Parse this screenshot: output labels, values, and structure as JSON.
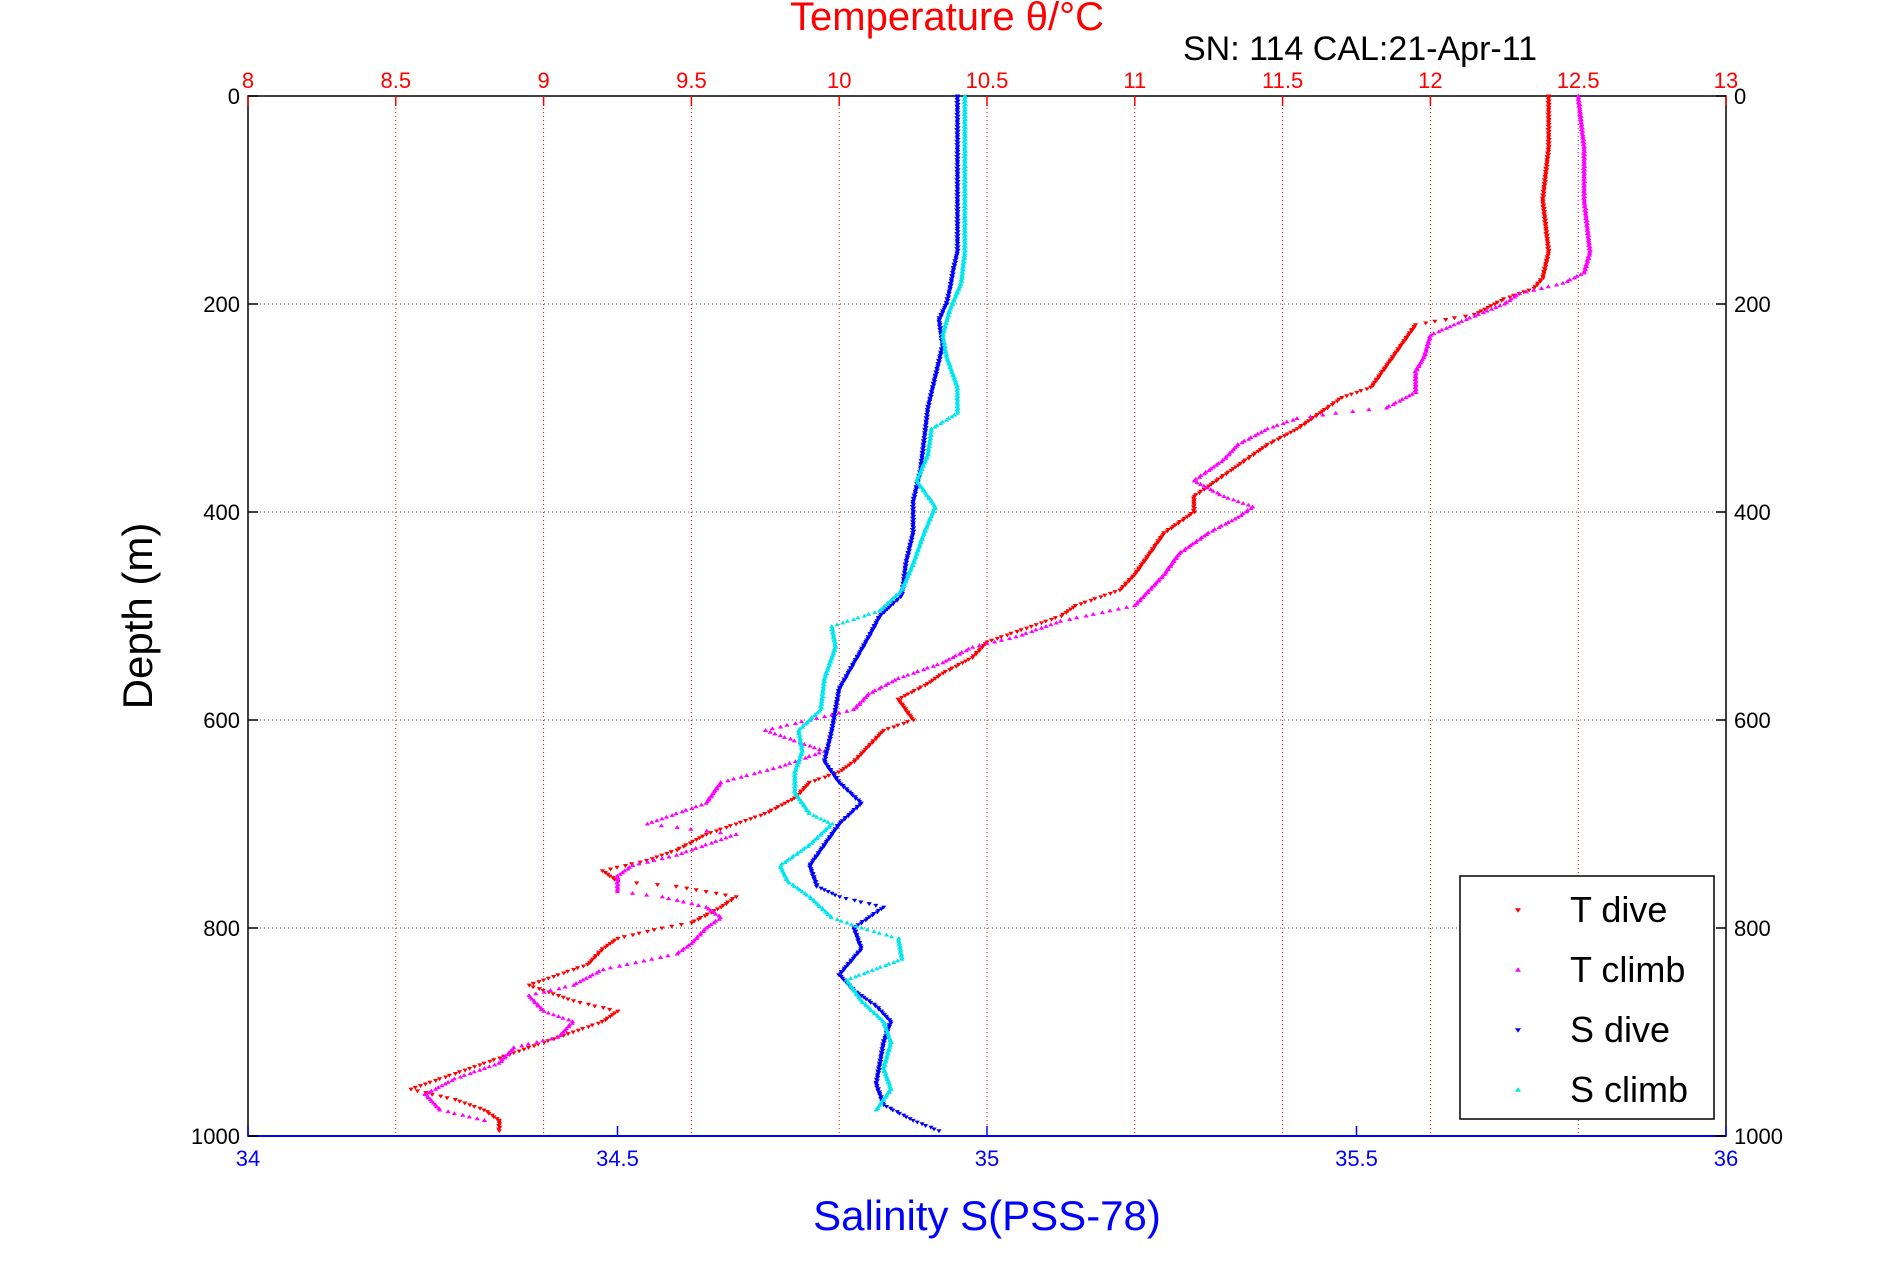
{
  "chart_data": {
    "type": "scatter",
    "title": "Temperature θ/°C",
    "subtitle": "SN: 114  CAL:21-Apr-11",
    "xlabel": "Salinity S(PSS-78)",
    "ylabel": "Depth (m)",
    "x_top": {
      "range": [
        8,
        13
      ],
      "ticks": [
        "8",
        "8.5",
        "9",
        "9.5",
        "10",
        "10.5",
        "11",
        "11.5",
        "12",
        "12.5",
        "13"
      ],
      "color": "#ff0000"
    },
    "x_bottom": {
      "range": [
        34,
        36
      ],
      "ticks": [
        "34",
        "34.5",
        "35",
        "35.5",
        "36"
      ],
      "color": "#0000ff"
    },
    "y": {
      "range": [
        0,
        1000
      ],
      "reversed": true,
      "ticks": [
        "0",
        "200",
        "400",
        "600",
        "800",
        "1000"
      ]
    },
    "grid": true,
    "legend_position": "bottom-right",
    "series": [
      {
        "name": "T dive",
        "axis": "top",
        "color": "#ff0000",
        "marker": "▾",
        "points": [
          [
            12.4,
            0
          ],
          [
            12.4,
            50
          ],
          [
            12.38,
            100
          ],
          [
            12.4,
            150
          ],
          [
            12.38,
            175
          ],
          [
            12.35,
            185
          ],
          [
            12.25,
            195
          ],
          [
            12.15,
            210
          ],
          [
            11.95,
            220
          ],
          [
            11.9,
            240
          ],
          [
            11.85,
            260
          ],
          [
            11.8,
            280
          ],
          [
            11.7,
            290
          ],
          [
            11.65,
            300
          ],
          [
            11.55,
            320
          ],
          [
            11.45,
            335
          ],
          [
            11.4,
            345
          ],
          [
            11.35,
            355
          ],
          [
            11.3,
            365
          ],
          [
            11.25,
            375
          ],
          [
            11.2,
            385
          ],
          [
            11.2,
            400
          ],
          [
            11.1,
            420
          ],
          [
            11.05,
            440
          ],
          [
            11.0,
            460
          ],
          [
            10.95,
            475
          ],
          [
            10.8,
            490
          ],
          [
            10.75,
            500
          ],
          [
            10.65,
            510
          ],
          [
            10.5,
            525
          ],
          [
            10.45,
            540
          ],
          [
            10.35,
            555
          ],
          [
            10.3,
            565
          ],
          [
            10.2,
            580
          ],
          [
            10.25,
            600
          ],
          [
            10.15,
            610
          ],
          [
            10.1,
            625
          ],
          [
            10.05,
            640
          ],
          [
            10.0,
            650
          ],
          [
            9.9,
            660
          ],
          [
            9.85,
            675
          ],
          [
            9.75,
            690
          ],
          [
            9.65,
            700
          ],
          [
            9.55,
            710
          ],
          [
            9.45,
            725
          ],
          [
            9.35,
            735
          ],
          [
            9.2,
            745
          ],
          [
            9.25,
            755
          ],
          [
            9.45,
            760
          ],
          [
            9.65,
            770
          ],
          [
            9.6,
            780
          ],
          [
            9.5,
            795
          ],
          [
            9.4,
            800
          ],
          [
            9.25,
            810
          ],
          [
            9.2,
            820
          ],
          [
            9.15,
            835
          ],
          [
            9.05,
            845
          ],
          [
            8.95,
            855
          ],
          [
            9.1,
            870
          ],
          [
            9.25,
            880
          ],
          [
            9.2,
            890
          ],
          [
            9.1,
            900
          ],
          [
            8.95,
            915
          ],
          [
            8.85,
            925
          ],
          [
            8.75,
            935
          ],
          [
            8.65,
            945
          ],
          [
            8.55,
            955
          ],
          [
            8.7,
            965
          ],
          [
            8.8,
            975
          ],
          [
            8.85,
            985
          ],
          [
            8.85,
            995
          ]
        ]
      },
      {
        "name": "T climb",
        "axis": "top",
        "color": "#ff00ff",
        "marker": "▴",
        "points": [
          [
            12.5,
            0
          ],
          [
            12.52,
            50
          ],
          [
            12.52,
            100
          ],
          [
            12.54,
            150
          ],
          [
            12.52,
            170
          ],
          [
            12.45,
            180
          ],
          [
            12.3,
            190
          ],
          [
            12.25,
            200
          ],
          [
            12.12,
            215
          ],
          [
            12.0,
            230
          ],
          [
            11.98,
            250
          ],
          [
            11.95,
            265
          ],
          [
            11.95,
            285
          ],
          [
            11.85,
            300
          ],
          [
            11.68,
            305
          ],
          [
            11.55,
            310
          ],
          [
            11.45,
            320
          ],
          [
            11.35,
            335
          ],
          [
            11.3,
            350
          ],
          [
            11.25,
            360
          ],
          [
            11.2,
            370
          ],
          [
            11.3,
            385
          ],
          [
            11.4,
            395
          ],
          [
            11.35,
            405
          ],
          [
            11.25,
            420
          ],
          [
            11.15,
            440
          ],
          [
            11.1,
            460
          ],
          [
            11.0,
            490
          ],
          [
            10.75,
            505
          ],
          [
            10.6,
            520
          ],
          [
            10.45,
            530
          ],
          [
            10.35,
            545
          ],
          [
            10.2,
            560
          ],
          [
            10.1,
            575
          ],
          [
            10.05,
            590
          ],
          [
            9.9,
            600
          ],
          [
            9.75,
            610
          ],
          [
            9.85,
            620
          ],
          [
            9.95,
            630
          ],
          [
            9.8,
            645
          ],
          [
            9.6,
            660
          ],
          [
            9.55,
            680
          ],
          [
            9.45,
            690
          ],
          [
            9.35,
            700
          ],
          [
            9.65,
            710
          ],
          [
            9.55,
            720
          ],
          [
            9.45,
            730
          ],
          [
            9.3,
            740
          ],
          [
            9.25,
            750
          ],
          [
            9.25,
            765
          ],
          [
            9.4,
            770
          ],
          [
            9.55,
            780
          ],
          [
            9.6,
            790
          ],
          [
            9.55,
            800
          ],
          [
            9.5,
            815
          ],
          [
            9.45,
            825
          ],
          [
            9.2,
            840
          ],
          [
            9.1,
            855
          ],
          [
            8.95,
            865
          ],
          [
            9.0,
            880
          ],
          [
            9.1,
            890
          ],
          [
            9.05,
            905
          ],
          [
            8.9,
            915
          ],
          [
            8.85,
            930
          ],
          [
            8.7,
            945
          ],
          [
            8.6,
            960
          ],
          [
            8.65,
            975
          ],
          [
            8.8,
            985
          ]
        ]
      },
      {
        "name": "S dive",
        "axis": "bottom",
        "color": "#0000ff",
        "marker": "▾",
        "points": [
          [
            34.96,
            0
          ],
          [
            34.96,
            50
          ],
          [
            34.96,
            100
          ],
          [
            34.96,
            150
          ],
          [
            34.955,
            165
          ],
          [
            34.95,
            185
          ],
          [
            34.945,
            200
          ],
          [
            34.935,
            215
          ],
          [
            34.94,
            240
          ],
          [
            34.93,
            270
          ],
          [
            34.92,
            300
          ],
          [
            34.915,
            330
          ],
          [
            34.91,
            360
          ],
          [
            34.9,
            390
          ],
          [
            34.9,
            420
          ],
          [
            34.89,
            450
          ],
          [
            34.885,
            480
          ],
          [
            34.87,
            490
          ],
          [
            34.855,
            500
          ],
          [
            34.84,
            520
          ],
          [
            34.82,
            545
          ],
          [
            34.8,
            570
          ],
          [
            34.795,
            590
          ],
          [
            34.79,
            610
          ],
          [
            34.78,
            640
          ],
          [
            34.8,
            660
          ],
          [
            34.83,
            680
          ],
          [
            34.8,
            700
          ],
          [
            34.78,
            720
          ],
          [
            34.76,
            740
          ],
          [
            34.77,
            760
          ],
          [
            34.8,
            770
          ],
          [
            34.86,
            780
          ],
          [
            34.82,
            800
          ],
          [
            34.83,
            820
          ],
          [
            34.8,
            845
          ],
          [
            34.82,
            860
          ],
          [
            34.85,
            875
          ],
          [
            34.87,
            890
          ],
          [
            34.86,
            910
          ],
          [
            34.855,
            930
          ],
          [
            34.85,
            950
          ],
          [
            34.86,
            970
          ],
          [
            34.9,
            985
          ],
          [
            34.935,
            995
          ]
        ]
      },
      {
        "name": "S climb",
        "axis": "bottom",
        "color": "#00e5ee",
        "marker": "▴",
        "points": [
          [
            34.97,
            0
          ],
          [
            34.97,
            50
          ],
          [
            34.97,
            100
          ],
          [
            34.97,
            150
          ],
          [
            34.965,
            180
          ],
          [
            34.95,
            205
          ],
          [
            34.94,
            230
          ],
          [
            34.945,
            250
          ],
          [
            34.96,
            280
          ],
          [
            34.96,
            305
          ],
          [
            34.925,
            320
          ],
          [
            34.92,
            345
          ],
          [
            34.905,
            370
          ],
          [
            34.93,
            395
          ],
          [
            34.915,
            420
          ],
          [
            34.9,
            450
          ],
          [
            34.885,
            475
          ],
          [
            34.855,
            495
          ],
          [
            34.79,
            510
          ],
          [
            34.795,
            530
          ],
          [
            34.78,
            560
          ],
          [
            34.775,
            590
          ],
          [
            34.745,
            610
          ],
          [
            34.75,
            630
          ],
          [
            34.74,
            650
          ],
          [
            34.74,
            670
          ],
          [
            34.76,
            690
          ],
          [
            34.79,
            700
          ],
          [
            34.76,
            720
          ],
          [
            34.72,
            740
          ],
          [
            34.73,
            755
          ],
          [
            34.76,
            770
          ],
          [
            34.79,
            790
          ],
          [
            34.83,
            800
          ],
          [
            34.88,
            810
          ],
          [
            34.885,
            830
          ],
          [
            34.81,
            850
          ],
          [
            34.83,
            870
          ],
          [
            34.86,
            890
          ],
          [
            34.87,
            910
          ],
          [
            34.86,
            935
          ],
          [
            34.87,
            955
          ],
          [
            34.85,
            975
          ]
        ]
      }
    ]
  }
}
